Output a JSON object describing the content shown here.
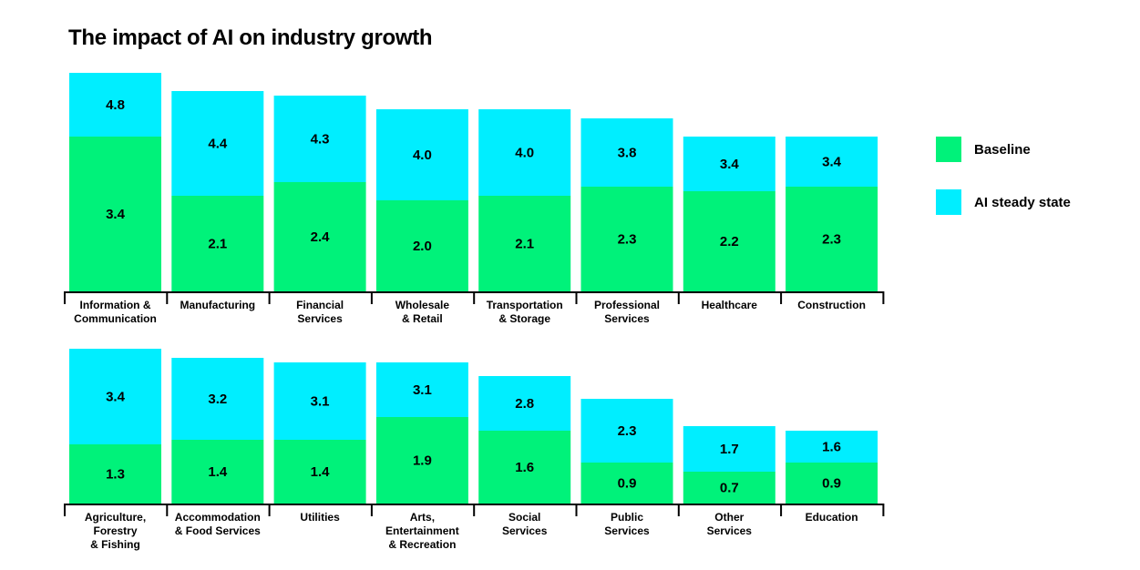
{
  "title": "The impact of AI on industry growth",
  "colors": {
    "baseline": "#00f27a",
    "ai": "#00eeff",
    "axis": "#000000"
  },
  "chart_data": {
    "type": "bar",
    "stacked": true,
    "title": "The impact of AI on industry growth",
    "legend_position": "right",
    "series": [
      {
        "name": "Baseline"
      },
      {
        "name": "AI steady state"
      }
    ],
    "panels": [
      {
        "categories": [
          [
            "Information &",
            "Communication"
          ],
          [
            "Manufacturing"
          ],
          [
            "Financial",
            "Services"
          ],
          [
            "Wholesale",
            "& Retail"
          ],
          [
            "Transportation",
            "& Storage"
          ],
          [
            "Professional",
            "Services"
          ],
          [
            "Healthcare"
          ],
          [
            "Construction"
          ]
        ],
        "baseline": [
          "3.4",
          "2.1",
          "2.4",
          "2.0",
          "2.1",
          "2.3",
          "2.2",
          "2.3"
        ],
        "ai_steady_state": [
          "4.8",
          "4.4",
          "4.3",
          "4.0",
          "4.0",
          "3.8",
          "3.4",
          "3.4"
        ]
      },
      {
        "categories": [
          [
            "Agriculture,",
            "Forestry",
            "& Fishing"
          ],
          [
            "Accommodation",
            "& Food Services"
          ],
          [
            "Utilities"
          ],
          [
            "Arts,",
            "Entertainment",
            "& Recreation"
          ],
          [
            "Social",
            "Services"
          ],
          [
            "Public",
            "Services"
          ],
          [
            "Other",
            "Services"
          ],
          [
            "Education"
          ]
        ],
        "baseline": [
          "1.3",
          "1.4",
          "1.4",
          "1.9",
          "1.6",
          "0.9",
          "0.7",
          "0.9"
        ],
        "ai_steady_state": [
          "3.4",
          "3.2",
          "3.1",
          "3.1",
          "2.8",
          "2.3",
          "1.7",
          "1.6"
        ]
      }
    ]
  }
}
